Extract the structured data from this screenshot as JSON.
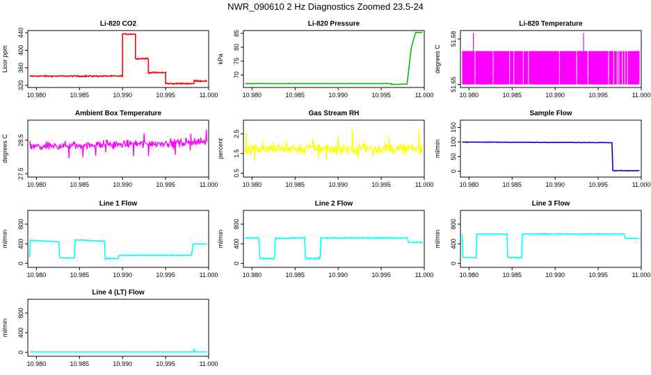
{
  "page": {
    "title": "NWR_090610  2 Hz Diagnostics Zoomed 23.5-24"
  },
  "chart_data": [
    {
      "type": "line",
      "title": "Li-820 CO2",
      "ylabel": "Licor ppm",
      "color": "#ff0000",
      "xlim": [
        10.979,
        11.0
      ],
      "xticks": [
        "10.980",
        "10.985",
        "10.990",
        "10.995",
        "11.000"
      ],
      "ylim": [
        315,
        445
      ],
      "yticks": [
        "320",
        "360",
        "400",
        "440"
      ],
      "series": [
        {
          "x": [
            10.9792,
            10.99,
            10.99,
            10.9915,
            10.9915,
            10.993,
            10.993,
            10.995,
            10.995,
            10.9983,
            10.9983,
            10.9998
          ],
          "y": [
            341,
            341,
            437,
            437,
            381,
            381,
            349,
            349,
            324,
            324,
            330,
            330
          ]
        }
      ],
      "noise": 1.5
    },
    {
      "type": "line",
      "title": "Li-820 Pressure",
      "ylabel": "kPa",
      "color": "#00c000",
      "xlim": [
        10.979,
        11.0
      ],
      "xticks": [
        "10.980",
        "10.985",
        "10.990",
        "10.995",
        "11.000"
      ],
      "ylim": [
        65.5,
        86
      ],
      "yticks": [
        "70",
        "75",
        "80",
        "85"
      ],
      "series": [
        {
          "x": [
            10.9792,
            10.9962,
            10.9962,
            10.998,
            10.9985,
            10.999,
            10.9998
          ],
          "y": [
            66.9,
            66.9,
            66.6,
            66.7,
            80,
            85.3,
            85.3
          ]
        }
      ],
      "noise": 0.05
    },
    {
      "type": "area",
      "title": "Li-820 Temperature",
      "ylabel": "degrees C",
      "color": "#ff00ff",
      "xlim": [
        10.979,
        11.0
      ],
      "xticks": [
        "10.980",
        "10.985",
        "10.990",
        "10.995",
        "11.000"
      ],
      "ylim": [
        51.648,
        51.6855
      ],
      "yticks": [
        "51.65",
        "51.68"
      ],
      "band": [
        51.65,
        51.672
      ],
      "spikes": [
        {
          "x": 10.9805,
          "y": 51.684
        },
        {
          "x": 10.9933,
          "y": 51.684
        }
      ],
      "gaps": [
        10.9807,
        10.9828,
        10.9847,
        10.9852,
        10.9863,
        10.9869,
        10.9905,
        10.9925,
        10.9938,
        10.9962,
        10.9968,
        10.9972,
        10.9974,
        10.9978,
        10.9981,
        10.9984
      ]
    },
    {
      "type": "line",
      "title": "Ambient Box Temperature",
      "ylabel": "degrees C",
      "color": "#ff00ff",
      "xlim": [
        10.979,
        11.0
      ],
      "xticks": [
        "10.980",
        "10.985",
        "10.990",
        "10.995",
        "11.000"
      ],
      "ylim": [
        27.4,
        29.1
      ],
      "yticks": [
        "27.5",
        "28.5"
      ],
      "series": [
        {
          "x": [
            10.9792,
            10.9998
          ],
          "y": [
            28.3,
            28.45
          ]
        }
      ],
      "noise": 0.12,
      "spike_noise": 0.45
    },
    {
      "type": "line",
      "title": "Gas Stream RH",
      "ylabel": "percent",
      "color": "#ffff00",
      "xlim": [
        10.979,
        11.0
      ],
      "xticks": [
        "10.980",
        "10.985",
        "10.990",
        "10.995",
        "11.000"
      ],
      "ylim": [
        0.3,
        3.2
      ],
      "yticks": [
        "0.5",
        "1.5",
        "2.5"
      ],
      "series": [
        {
          "x": [
            10.9792,
            10.9998
          ],
          "y": [
            1.75,
            1.75
          ]
        }
      ],
      "noise": 0.28,
      "spike_noise": 0.9
    },
    {
      "type": "line",
      "title": "Sample Flow",
      "ylabel": "ml/min",
      "color": "#0000c0",
      "xlim": [
        10.979,
        11.0
      ],
      "xticks": [
        "10.980",
        "10.985",
        "10.990",
        "10.995",
        "11.000"
      ],
      "ylim": [
        -20,
        175
      ],
      "yticks": [
        "0",
        "50",
        "100",
        "150"
      ],
      "series": [
        {
          "x": [
            10.9792,
            10.9966,
            10.9967,
            10.9998
          ],
          "y": [
            100,
            98,
            2,
            2
          ]
        }
      ],
      "noise": 0.8
    },
    {
      "type": "line",
      "title": "Line 1 Flow",
      "ylabel": "ml/min",
      "color": "#00ffff",
      "xlim": [
        10.979,
        11.0
      ],
      "xticks": [
        "10.980",
        "10.985",
        "10.990",
        "10.995",
        "11.000"
      ],
      "ylim": [
        -80,
        1080
      ],
      "yticks": [
        "0",
        "400",
        "800"
      ],
      "series": [
        {
          "x": [
            10.9792,
            10.9793,
            10.9826,
            10.9827,
            10.9844,
            10.9845,
            10.9879,
            10.988,
            10.9895,
            10.9896,
            10.998,
            10.9982,
            10.9998
          ],
          "y": [
            130,
            470,
            440,
            110,
            110,
            480,
            450,
            100,
            100,
            165,
            165,
            400,
            395
          ]
        }
      ],
      "noise": 8
    },
    {
      "type": "line",
      "title": "Line 2 Flow",
      "ylabel": "ml/min",
      "color": "#00ffff",
      "xlim": [
        10.979,
        11.0
      ],
      "xticks": [
        "10.980",
        "10.985",
        "10.990",
        "10.995",
        "11.000"
      ],
      "ylim": [
        -80,
        1080
      ],
      "yticks": [
        "0",
        "400",
        "800"
      ],
      "series": [
        {
          "x": [
            10.9792,
            10.9808,
            10.9809,
            10.9826,
            10.9827,
            10.9844,
            10.9845,
            10.9861,
            10.9862,
            10.9879,
            10.988,
            10.998,
            10.9982,
            10.9998
          ],
          "y": [
            520,
            520,
            100,
            100,
            510,
            510,
            520,
            520,
            100,
            100,
            520,
            520,
            430,
            430
          ]
        }
      ],
      "noise": 12
    },
    {
      "type": "line",
      "title": "Line 3 Flow",
      "ylabel": "ml/min",
      "color": "#00ffff",
      "xlim": [
        10.979,
        11.0
      ],
      "xticks": [
        "10.980",
        "10.985",
        "10.990",
        "10.995",
        "11.000"
      ],
      "ylim": [
        -80,
        1080
      ],
      "yticks": [
        "0",
        "400",
        "800"
      ],
      "series": [
        {
          "x": [
            10.9792,
            10.9793,
            10.9808,
            10.9809,
            10.9844,
            10.9845,
            10.9861,
            10.9862,
            10.998,
            10.9982,
            10.9998
          ],
          "y": [
            590,
            120,
            120,
            600,
            600,
            120,
            120,
            600,
            600,
            510,
            510
          ]
        }
      ],
      "noise": 10
    },
    {
      "type": "line",
      "title": "Line 4 (LT) Flow",
      "ylabel": "ml/min",
      "color": "#00ffff",
      "xlim": [
        10.979,
        11.0
      ],
      "xticks": [
        "10.980",
        "10.985",
        "10.990",
        "10.995",
        "11.000"
      ],
      "ylim": [
        -80,
        1080
      ],
      "yticks": [
        "0",
        "400",
        "800"
      ],
      "series": [
        {
          "x": [
            10.9792,
            10.9982,
            10.9983,
            10.9984,
            10.9998
          ],
          "y": [
            10,
            10,
            60,
            10,
            10
          ]
        }
      ],
      "noise": 2
    }
  ]
}
